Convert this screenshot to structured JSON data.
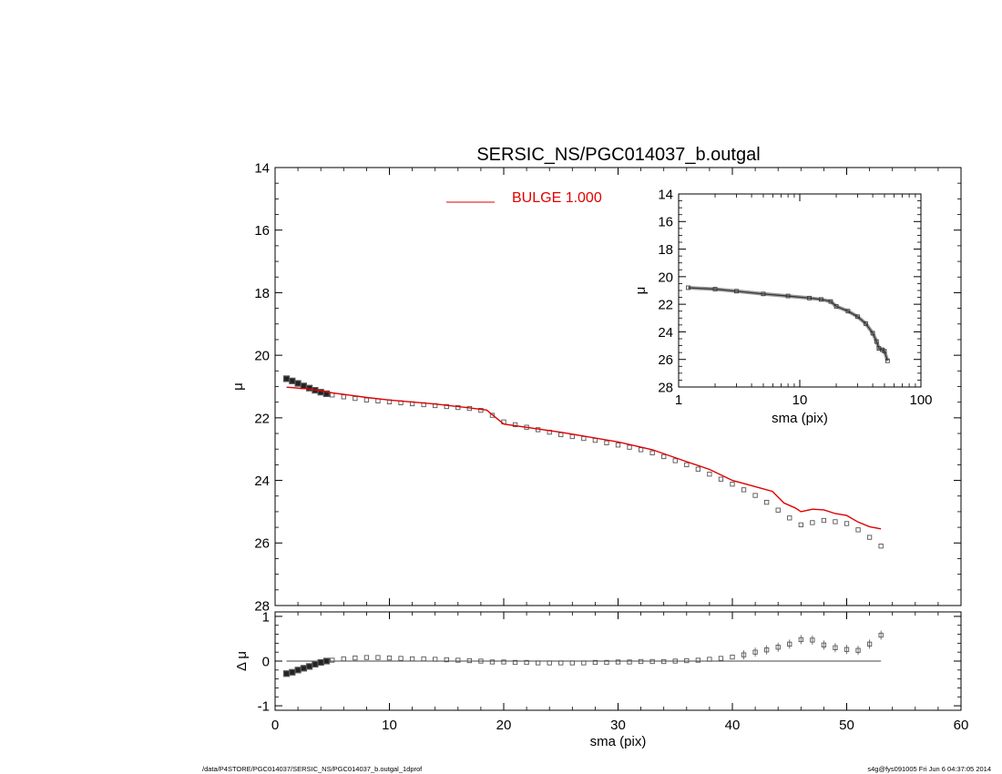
{
  "footer": {
    "left": "/data/P4STORE/PGC014037/SERSIC_NS/PGC014037_b.outgal_1dprof",
    "right": "s4g@fys091005  Fri Jun  6 04:37:05 2014"
  },
  "chart_data": [
    {
      "type": "scatter",
      "title": "SERSIC_NS/PGC014037_b.outgal",
      "xlabel": "",
      "ylabel": "μ",
      "xlim": [
        0,
        60
      ],
      "ylim": [
        28,
        14
      ],
      "y_inverted": true,
      "x_ticks": [
        0,
        10,
        20,
        30,
        40,
        50,
        60
      ],
      "y_ticks": [
        14,
        16,
        18,
        20,
        22,
        24,
        26,
        28
      ],
      "legend": {
        "placement": "top-center",
        "entries": [
          {
            "label": "BULGE  1.000",
            "color": "#e00000"
          }
        ]
      },
      "series": [
        {
          "marker": "open-square",
          "color": "#555555",
          "points": [
            [
              1,
              20.75
            ],
            [
              1.5,
              20.82
            ],
            [
              2,
              20.9
            ],
            [
              2.5,
              20.98
            ],
            [
              3,
              21.05
            ],
            [
              3.5,
              21.12
            ],
            [
              4,
              21.18
            ],
            [
              4.5,
              21.23
            ],
            [
              5,
              21.27
            ],
            [
              6,
              21.33
            ],
            [
              7,
              21.38
            ],
            [
              8,
              21.43
            ],
            [
              9,
              21.46
            ],
            [
              10,
              21.49
            ],
            [
              11,
              21.52
            ],
            [
              12,
              21.55
            ],
            [
              13,
              21.58
            ],
            [
              14,
              21.61
            ],
            [
              15,
              21.64
            ],
            [
              16,
              21.67
            ],
            [
              17,
              21.7
            ],
            [
              18,
              21.76
            ],
            [
              19,
              21.92
            ],
            [
              20,
              22.13
            ],
            [
              21,
              22.22
            ],
            [
              22,
              22.3
            ],
            [
              23,
              22.38
            ],
            [
              24,
              22.46
            ],
            [
              25,
              22.54
            ],
            [
              26,
              22.6
            ],
            [
              27,
              22.66
            ],
            [
              28,
              22.72
            ],
            [
              29,
              22.8
            ],
            [
              30,
              22.87
            ],
            [
              31,
              22.94
            ],
            [
              32,
              23.02
            ],
            [
              33,
              23.12
            ],
            [
              34,
              23.24
            ],
            [
              35,
              23.37
            ],
            [
              36,
              23.5
            ],
            [
              37,
              23.64
            ],
            [
              38,
              23.8
            ],
            [
              39,
              23.96
            ],
            [
              40,
              24.12
            ],
            [
              41,
              24.3
            ],
            [
              42,
              24.48
            ],
            [
              43,
              24.7
            ],
            [
              44,
              24.95
            ],
            [
              45,
              25.2
            ],
            [
              46,
              25.42
            ],
            [
              47,
              25.35
            ],
            [
              48,
              25.28
            ],
            [
              49,
              25.32
            ],
            [
              50,
              25.38
            ],
            [
              51,
              25.58
            ],
            [
              52,
              25.82
            ],
            [
              53,
              26.1
            ]
          ]
        },
        {
          "name": "BULGE  1.000",
          "marker": "line",
          "color": "#e00000",
          "points": [
            [
              1,
              21.02
            ],
            [
              3,
              21.08
            ],
            [
              5,
              21.2
            ],
            [
              8,
              21.35
            ],
            [
              10,
              21.43
            ],
            [
              14,
              21.56
            ],
            [
              17,
              21.68
            ],
            [
              18.5,
              21.75
            ],
            [
              20,
              22.2
            ],
            [
              25,
              22.46
            ],
            [
              30,
              22.77
            ],
            [
              33,
              23.02
            ],
            [
              36,
              23.4
            ],
            [
              38,
              23.65
            ],
            [
              40,
              24.0
            ],
            [
              42,
              24.2
            ],
            [
              43.5,
              24.35
            ],
            [
              44.5,
              24.72
            ],
            [
              45.5,
              24.88
            ],
            [
              46,
              25.0
            ],
            [
              47,
              24.92
            ],
            [
              48,
              24.94
            ],
            [
              49,
              25.06
            ],
            [
              50,
              25.12
            ],
            [
              51,
              25.33
            ],
            [
              52,
              25.48
            ],
            [
              53,
              25.55
            ]
          ]
        }
      ]
    },
    {
      "type": "scatter",
      "title": "",
      "xlabel": "sma (pix)",
      "ylabel": "Δ μ",
      "xlim": [
        0,
        60
      ],
      "ylim": [
        -1.1,
        1.1
      ],
      "x_ticks": [
        0,
        10,
        20,
        30,
        40,
        50,
        60
      ],
      "y_ticks": [
        -1,
        0,
        1
      ],
      "reference_line": 0,
      "series": [
        {
          "marker": "open-square",
          "color": "#555555",
          "error_bars": true,
          "points": [
            [
              1,
              -0.28
            ],
            [
              1.5,
              -0.25
            ],
            [
              2,
              -0.2
            ],
            [
              2.5,
              -0.16
            ],
            [
              3,
              -0.12
            ],
            [
              3.5,
              -0.07
            ],
            [
              4,
              -0.03
            ],
            [
              4.5,
              0.0
            ],
            [
              5,
              0.02
            ],
            [
              6,
              0.05
            ],
            [
              7,
              0.07
            ],
            [
              8,
              0.08
            ],
            [
              9,
              0.08
            ],
            [
              10,
              0.07
            ],
            [
              11,
              0.06
            ],
            [
              12,
              0.05
            ],
            [
              13,
              0.05
            ],
            [
              14,
              0.04
            ],
            [
              15,
              0.03
            ],
            [
              16,
              0.02
            ],
            [
              17,
              0.01
            ],
            [
              18,
              0.0
            ],
            [
              19,
              -0.02
            ],
            [
              20,
              -0.02
            ],
            [
              21,
              -0.03
            ],
            [
              22,
              -0.03
            ],
            [
              23,
              -0.04
            ],
            [
              24,
              -0.04
            ],
            [
              25,
              -0.04
            ],
            [
              26,
              -0.04
            ],
            [
              27,
              -0.04
            ],
            [
              28,
              -0.03
            ],
            [
              29,
              -0.03
            ],
            [
              30,
              -0.02
            ],
            [
              31,
              -0.02
            ],
            [
              32,
              -0.01
            ],
            [
              33,
              -0.01
            ],
            [
              34,
              -0.01
            ],
            [
              35,
              0.0
            ],
            [
              36,
              0.01
            ],
            [
              37,
              0.02
            ],
            [
              38,
              0.04
            ],
            [
              39,
              0.06
            ],
            [
              40,
              0.09
            ],
            [
              41,
              0.14
            ],
            [
              42,
              0.2
            ],
            [
              43,
              0.25
            ],
            [
              44,
              0.31
            ],
            [
              45,
              0.38
            ],
            [
              46,
              0.48
            ],
            [
              47,
              0.47
            ],
            [
              48,
              0.36
            ],
            [
              49,
              0.3
            ],
            [
              50,
              0.26
            ],
            [
              51,
              0.24
            ],
            [
              52,
              0.38
            ],
            [
              53,
              0.58
            ]
          ]
        }
      ]
    },
    {
      "type": "line",
      "title": "",
      "xlabel": "sma (pix)",
      "ylabel": "μ",
      "x_scale": "log",
      "xlim": [
        1,
        100
      ],
      "ylim": [
        28,
        14
      ],
      "y_inverted": true,
      "x_ticks": [
        1,
        10,
        100
      ],
      "y_ticks": [
        14,
        16,
        18,
        20,
        22,
        24,
        26,
        28
      ],
      "series": [
        {
          "marker": "open-square-thick",
          "color": "#333333",
          "points": [
            [
              1.2,
              20.8
            ],
            [
              2,
              20.9
            ],
            [
              3,
              21.05
            ],
            [
              5,
              21.25
            ],
            [
              8,
              21.4
            ],
            [
              12,
              21.55
            ],
            [
              15,
              21.65
            ],
            [
              18,
              21.8
            ],
            [
              20,
              22.15
            ],
            [
              25,
              22.5
            ],
            [
              30,
              22.9
            ],
            [
              35,
              23.4
            ],
            [
              40,
              24.1
            ],
            [
              43,
              24.7
            ],
            [
              45,
              25.2
            ],
            [
              48,
              25.3
            ],
            [
              50,
              25.4
            ],
            [
              53,
              26.1
            ]
          ]
        }
      ]
    }
  ]
}
